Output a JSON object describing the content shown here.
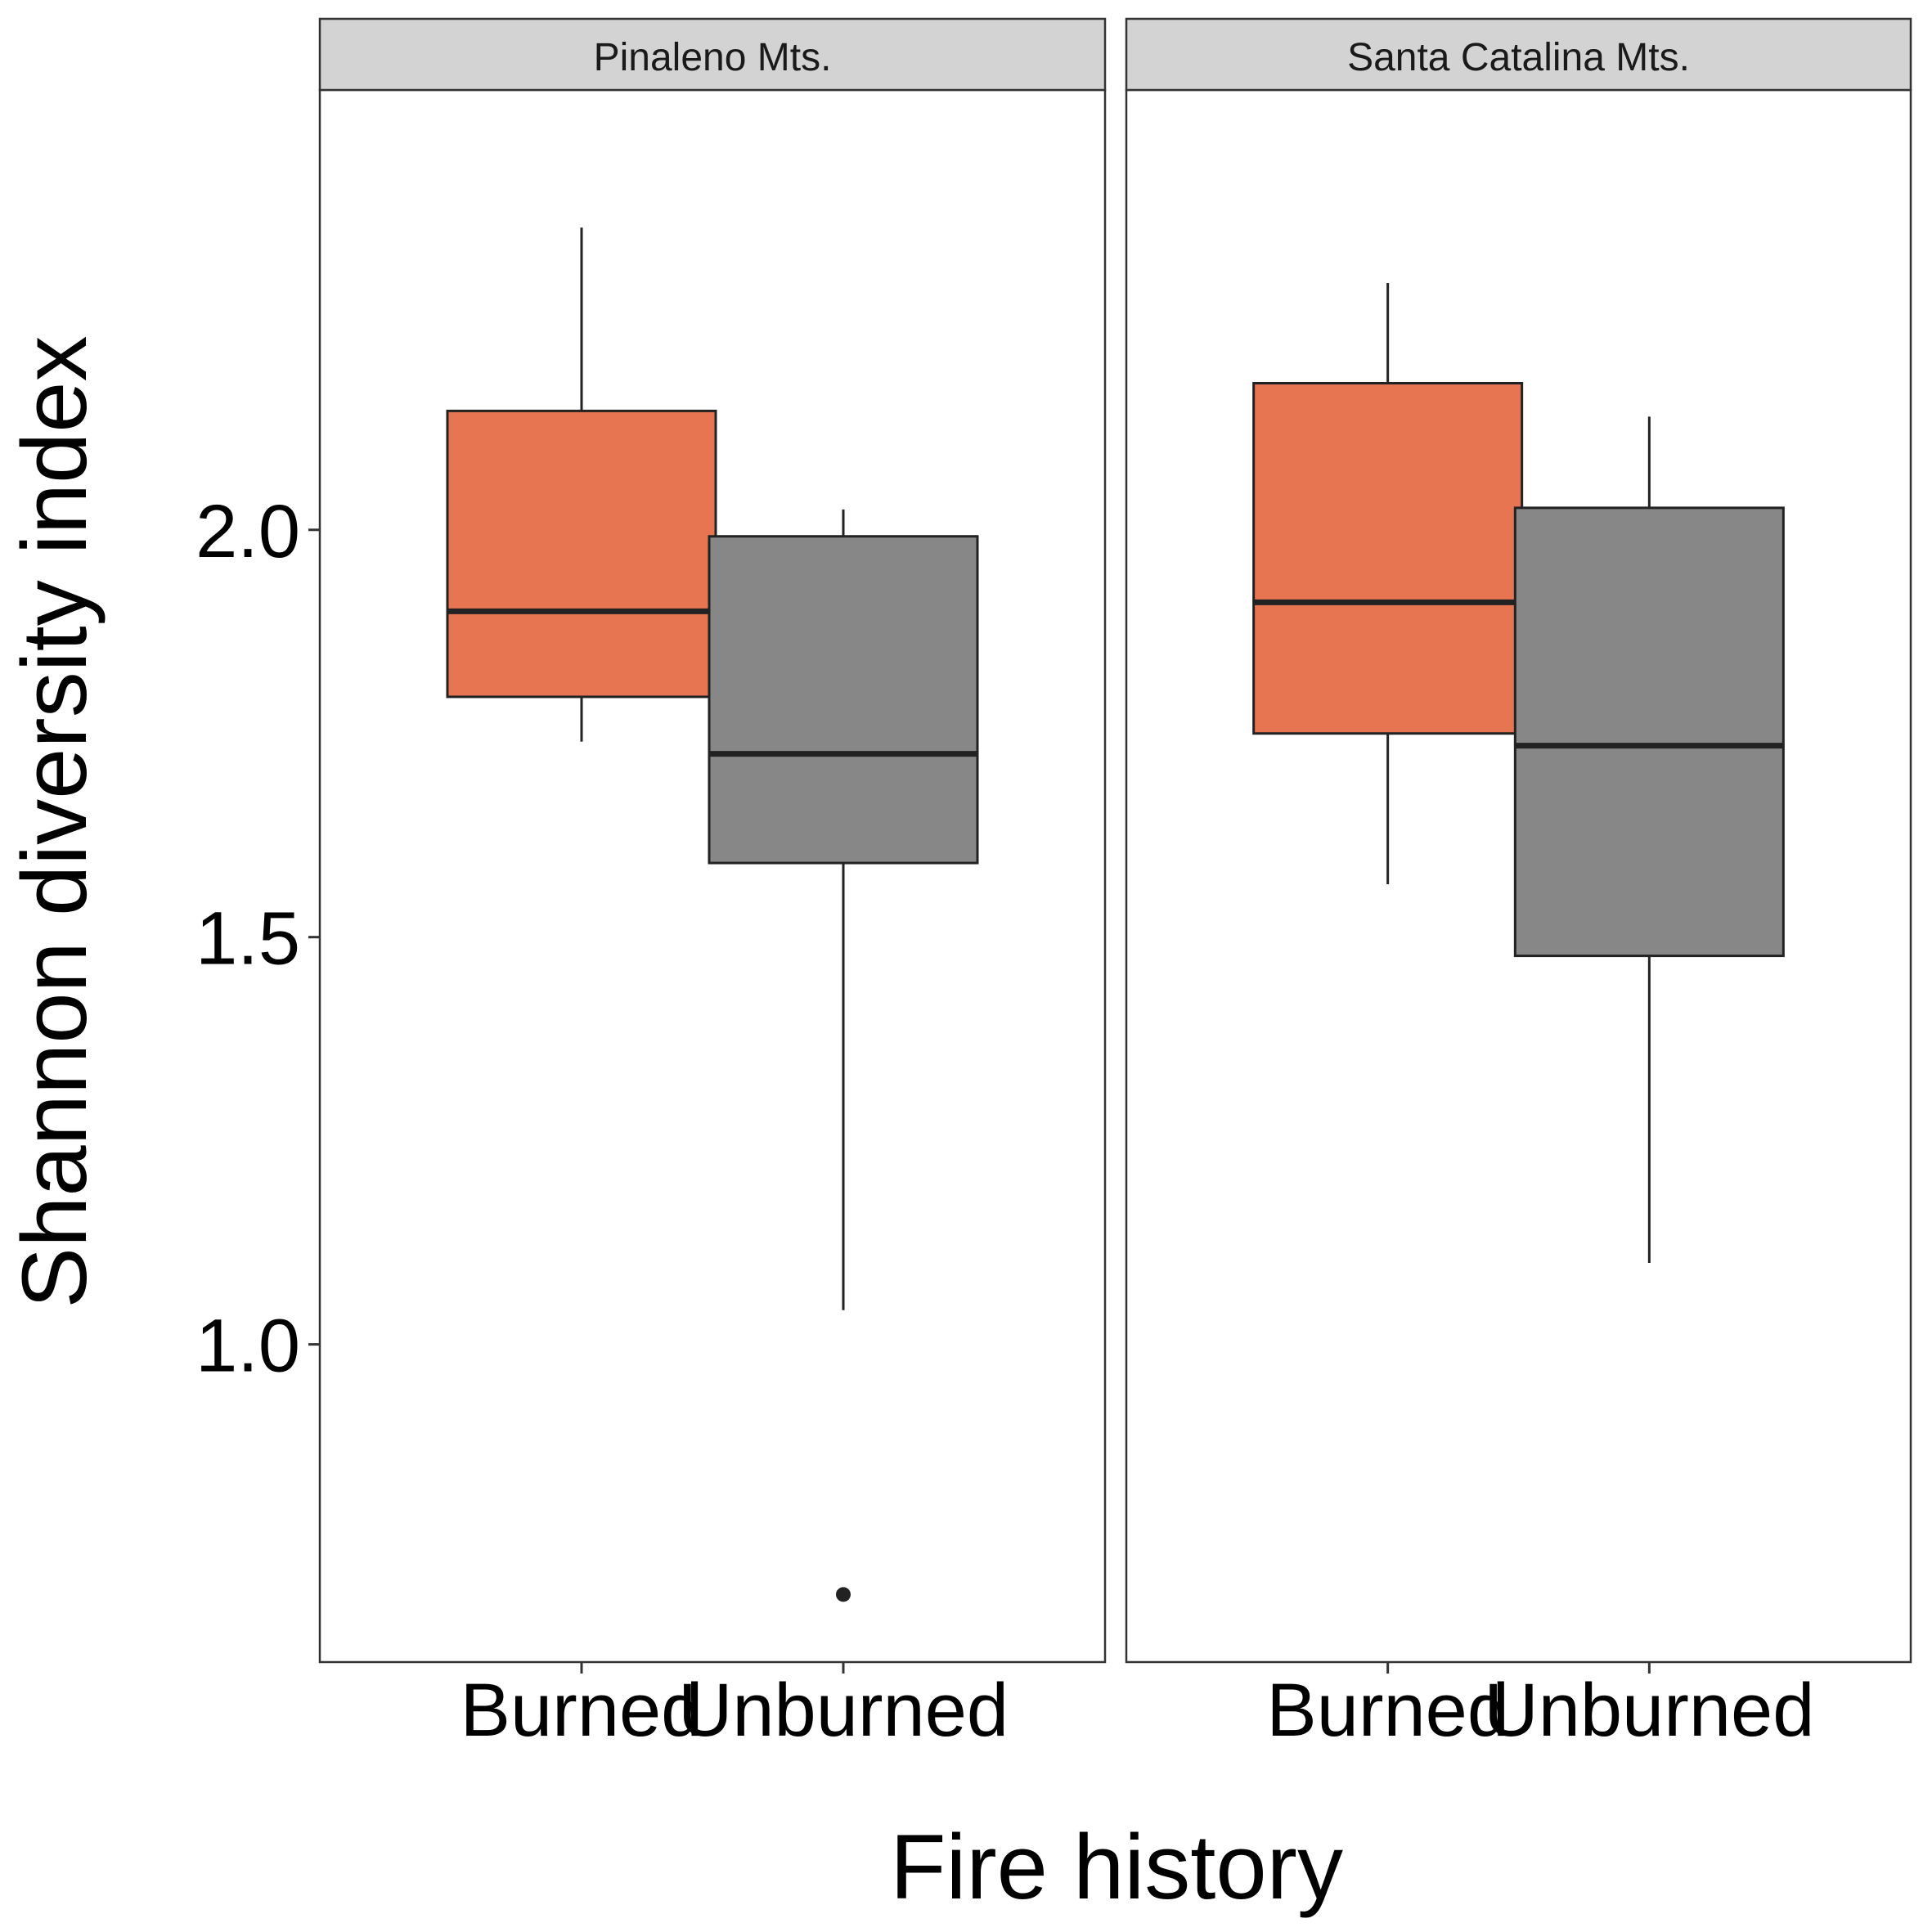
{
  "chart_data": {
    "type": "boxplot",
    "xlabel": "Fire history",
    "ylabel": "Shannon diversity index",
    "categories": [
      "Burned",
      "Unburned"
    ],
    "ylim": [
      0.61,
      2.54
    ],
    "yticks": [
      "1.0",
      "1.5",
      "2.0"
    ],
    "ytick_values": [
      1.0,
      1.5,
      2.0
    ],
    "grid": false,
    "legend": "none",
    "colors": {
      "Burned": "#E87552",
      "Unburned": "#878787",
      "outline": "#222222",
      "strip_fill": "#D3D3D3"
    },
    "panels": [
      {
        "name": "Pinaleno Mts.",
        "boxes": [
          {
            "category": "Burned",
            "whisker_low": 1.74,
            "q1": 1.795,
            "median": 1.9,
            "q3": 2.146,
            "whisker_high": 2.371,
            "outliers": []
          },
          {
            "category": "Unburned",
            "whisker_low": 1.042,
            "q1": 1.591,
            "median": 1.725,
            "q3": 1.992,
            "whisker_high": 2.025,
            "outliers": [
              0.693
            ]
          }
        ]
      },
      {
        "name": "Santa Catalina Mts.",
        "boxes": [
          {
            "category": "Burned",
            "whisker_low": 1.565,
            "q1": 1.75,
            "median": 1.911,
            "q3": 2.18,
            "whisker_high": 2.303,
            "outliers": []
          },
          {
            "category": "Unburned",
            "whisker_low": 1.1,
            "q1": 1.477,
            "median": 1.735,
            "q3": 2.027,
            "whisker_high": 2.139,
            "outliers": []
          }
        ]
      }
    ]
  }
}
